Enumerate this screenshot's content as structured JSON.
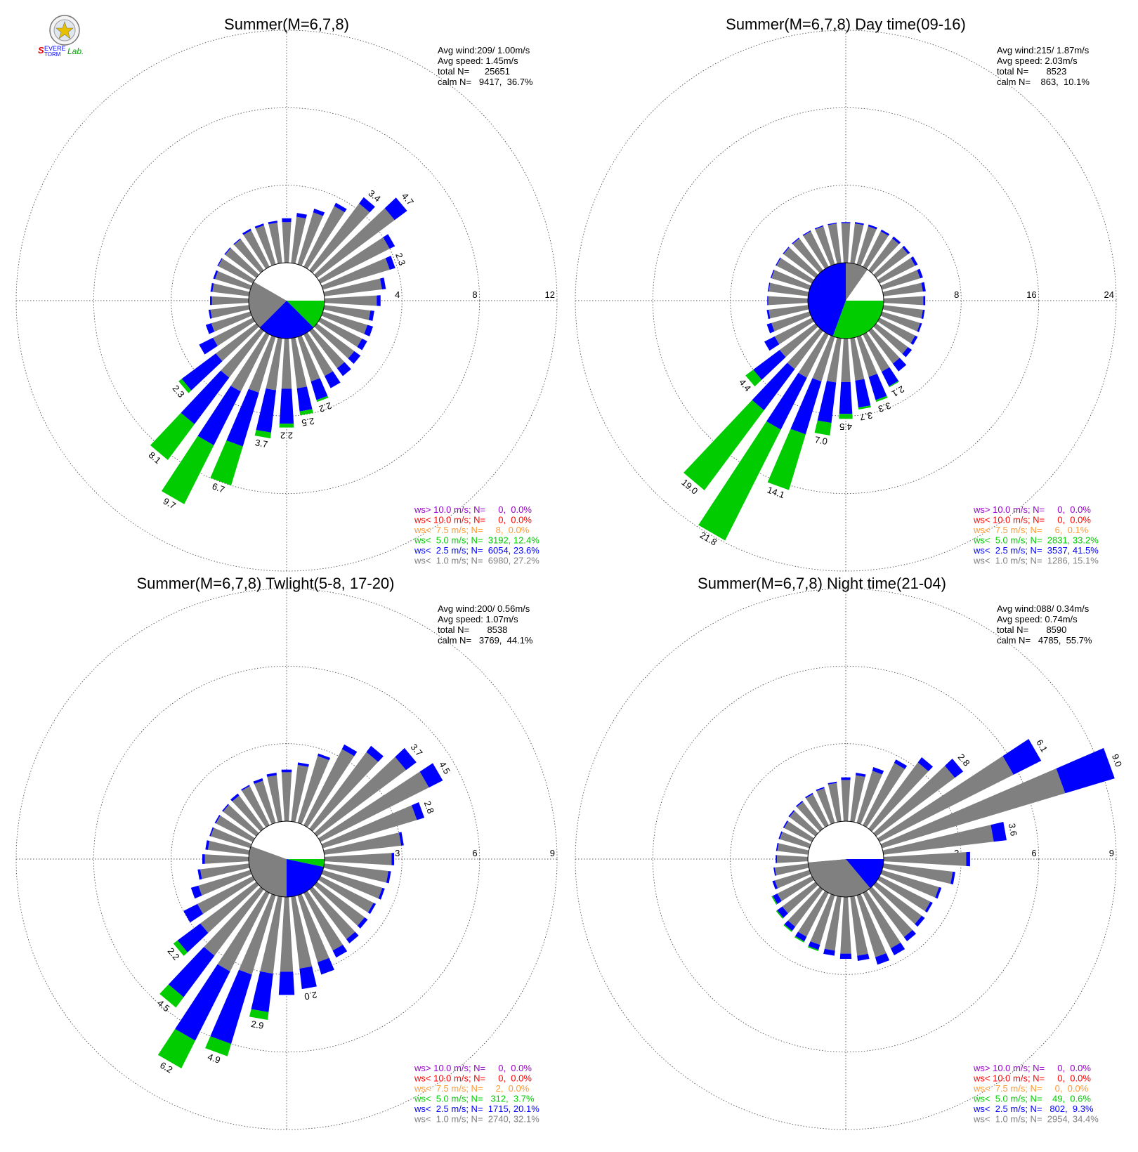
{
  "logo": {
    "name": "severe-storm-lab-logo",
    "text": "SEVERE STORM Lab."
  },
  "colors": {
    "gt10": "#9900cc",
    "lt10": "#ff0000",
    "lt75": "#ff9933",
    "lt5": "#00cc00",
    "lt25": "#0000ff",
    "lt1": "#808080"
  },
  "chart_data": [
    {
      "type": "polar-bar",
      "title": "Summer(M=6,7,8)",
      "stats": [
        "Avg wind:209/ 1.00m/s",
        "Avg speed: 1.45m/s",
        "total N=      25651",
        "calm N=   9417,  36.7%"
      ],
      "rmax": 12,
      "ring_labels": [
        "4",
        "8",
        "12"
      ],
      "calm_sectors": [
        {
          "color": "lt5",
          "start": 90,
          "end": 135
        },
        {
          "color": "lt25",
          "start": 135,
          "end": 225
        },
        {
          "color": "lt1",
          "start": 225,
          "end": 300
        },
        {
          "color": "white",
          "start": 300,
          "end": 450
        }
      ],
      "bars": [
        {
          "dir": 0,
          "lt1": 2.1,
          "lt25": 2.3
        },
        {
          "dir": 10,
          "lt1": 2.4,
          "lt25": 2.6
        },
        {
          "dir": 20,
          "lt1": 2.8,
          "lt25": 3.0
        },
        {
          "dir": 30,
          "lt1": 3.5,
          "lt25": 3.7
        },
        {
          "dir": 40,
          "lt1": 4.3,
          "lt25": 4.7,
          "label": "3.4"
        },
        {
          "dir": 50,
          "lt1": 5.0,
          "lt25": 5.8,
          "label": "4.7"
        },
        {
          "dir": 60,
          "lt1": 4.0,
          "lt25": 4.3
        },
        {
          "dir": 70,
          "lt1": 3.6,
          "lt25": 3.9,
          "label": "2.3"
        },
        {
          "dir": 80,
          "lt1": 3.0,
          "lt25": 3.2
        },
        {
          "dir": 90,
          "lt1": 2.7,
          "lt25": 2.9
        },
        {
          "dir": 100,
          "lt1": 2.4,
          "lt25": 2.6
        },
        {
          "dir": 110,
          "lt1": 2.4,
          "lt25": 2.7
        },
        {
          "dir": 120,
          "lt1": 2.4,
          "lt25": 2.7
        },
        {
          "dir": 130,
          "lt1": 2.4,
          "lt25": 2.8
        },
        {
          "dir": 140,
          "lt1": 2.4,
          "lt25": 2.9
        },
        {
          "dir": 150,
          "lt1": 2.4,
          "lt25": 3.1
        },
        {
          "dir": 160,
          "lt1": 2.4,
          "lt25": 3.4,
          "lt5": 3.5,
          "label": "2.2"
        },
        {
          "dir": 170,
          "lt1": 2.6,
          "lt25": 3.8,
          "lt5": 4.0,
          "label": "2.5"
        },
        {
          "dir": 180,
          "lt1": 2.6,
          "lt25": 4.4,
          "lt5": 4.6,
          "label": "2.2"
        },
        {
          "dir": 190,
          "lt1": 2.7,
          "lt25": 4.9,
          "lt5": 5.2,
          "label": "3.7"
        },
        {
          "dir": 200,
          "lt1": 3.0,
          "lt25": 5.9,
          "lt5": 8.0,
          "label": "6.7"
        },
        {
          "dir": 210,
          "lt1": 3.3,
          "lt25": 6.4,
          "lt5": 9.8,
          "label": "9.7"
        },
        {
          "dir": 220,
          "lt1": 3.0,
          "lt25": 6.0,
          "lt5": 8.3,
          "label": "8.1"
        },
        {
          "dir": 230,
          "lt1": 2.6,
          "lt25": 4.8,
          "lt5": 5.0,
          "label": "2.3"
        },
        {
          "dir": 240,
          "lt1": 2.3,
          "lt25": 3.1
        },
        {
          "dir": 250,
          "lt1": 2.1,
          "lt25": 2.4
        },
        {
          "dir": 260,
          "lt1": 2.0,
          "lt25": 2.1
        },
        {
          "dir": 270,
          "lt1": 1.9,
          "lt25": 2.0
        },
        {
          "dir": 280,
          "lt1": 1.9,
          "lt25": 2.0
        },
        {
          "dir": 290,
          "lt1": 1.9,
          "lt25": 2.0
        },
        {
          "dir": 300,
          "lt1": 2.0,
          "lt25": 2.05
        },
        {
          "dir": 310,
          "lt1": 2.0,
          "lt25": 2.05
        },
        {
          "dir": 320,
          "lt1": 2.0,
          "lt25": 2.05
        },
        {
          "dir": 330,
          "lt1": 2.1,
          "lt25": 2.2
        },
        {
          "dir": 340,
          "lt1": 2.1,
          "lt25": 2.2
        },
        {
          "dir": 350,
          "lt1": 2.1,
          "lt25": 2.2
        }
      ],
      "legend": [
        {
          "color": "gt10",
          "text": "ws> 10.0 m/s; N=     0,  0.0%"
        },
        {
          "color": "lt10",
          "text": "ws< 10.0 m/s; N=     0,  0.0%"
        },
        {
          "color": "lt75",
          "text": "ws<  7.5 m/s; N=     8,  0.0%"
        },
        {
          "color": "lt5",
          "text": "ws<  5.0 m/s; N=  3192, 12.4%"
        },
        {
          "color": "lt25",
          "text": "ws<  2.5 m/s; N=  6054, 23.6%"
        },
        {
          "color": "lt1",
          "text": "ws<  1.0 m/s; N=  6980, 27.2%"
        }
      ]
    },
    {
      "type": "polar-bar",
      "title": "Summer(M=6,7,8) Day time(09-16)",
      "stats": [
        "Avg wind:215/ 1.87m/s",
        "Avg speed: 2.03m/s",
        "total N=       8523",
        "calm N=    863,  10.1%"
      ],
      "rmax": 24,
      "ring_labels": [
        "8",
        "16",
        "24"
      ],
      "calm_sectors": [
        {
          "color": "lt5",
          "start": 90,
          "end": 200
        },
        {
          "color": "lt25",
          "start": 200,
          "end": 360
        },
        {
          "color": "lt1",
          "start": 360,
          "end": 395
        },
        {
          "color": "white",
          "start": 395,
          "end": 450
        }
      ],
      "bars": [
        {
          "dir": 0,
          "lt1": 4.1,
          "lt25": 4.2
        },
        {
          "dir": 10,
          "lt1": 4.1,
          "lt25": 4.25
        },
        {
          "dir": 20,
          "lt1": 4.1,
          "lt25": 4.3
        },
        {
          "dir": 30,
          "lt1": 4.1,
          "lt25": 4.3
        },
        {
          "dir": 40,
          "lt1": 4.1,
          "lt25": 4.35
        },
        {
          "dir": 50,
          "lt1": 4.1,
          "lt25": 4.35
        },
        {
          "dir": 60,
          "lt1": 4.1,
          "lt25": 4.4
        },
        {
          "dir": 70,
          "lt1": 4.1,
          "lt25": 4.4
        },
        {
          "dir": 80,
          "lt1": 4.1,
          "lt25": 4.4
        },
        {
          "dir": 90,
          "lt1": 4.1,
          "lt25": 4.3
        },
        {
          "dir": 100,
          "lt1": 4.1,
          "lt25": 4.3
        },
        {
          "dir": 110,
          "lt1": 4.1,
          "lt25": 4.3
        },
        {
          "dir": 120,
          "lt1": 4.1,
          "lt25": 4.4
        },
        {
          "dir": 130,
          "lt1": 4.1,
          "lt25": 4.6
        },
        {
          "dir": 140,
          "lt1": 4.2,
          "lt25": 5.2
        },
        {
          "dir": 150,
          "lt1": 4.3,
          "lt25": 6.0,
          "lt5": 6.1,
          "label": "2.1"
        },
        {
          "dir": 160,
          "lt1": 4.3,
          "lt25": 6.8,
          "lt5": 7.0,
          "label": "3.3"
        },
        {
          "dir": 170,
          "lt1": 4.4,
          "lt25": 7.2,
          "lt5": 7.4,
          "label": "3.7"
        },
        {
          "dir": 180,
          "lt1": 4.5,
          "lt25": 7.8,
          "lt5": 8.3,
          "label": "4.5"
        },
        {
          "dir": 190,
          "lt1": 4.6,
          "lt25": 8.8,
          "lt5": 10.1,
          "label": "7.0"
        },
        {
          "dir": 200,
          "lt1": 4.8,
          "lt25": 10.5,
          "lt5": 16.5,
          "label": "14.1"
        },
        {
          "dir": 210,
          "lt1": 5.0,
          "lt25": 11.0,
          "lt5": 23.8,
          "label": "21.8"
        },
        {
          "dir": 220,
          "lt1": 4.9,
          "lt25": 10.2,
          "lt5": 20.5,
          "label": "19.0"
        },
        {
          "dir": 230,
          "lt1": 4.6,
          "lt25": 8.0,
          "lt5": 9.0,
          "label": "4.4"
        },
        {
          "dir": 240,
          "lt1": 4.3,
          "lt25": 5.5
        },
        {
          "dir": 250,
          "lt1": 4.1,
          "lt25": 4.6
        },
        {
          "dir": 260,
          "lt1": 4.1,
          "lt25": 4.3
        },
        {
          "dir": 270,
          "lt1": 4.1,
          "lt25": 4.2
        },
        {
          "dir": 280,
          "lt1": 4.1,
          "lt25": 4.2
        },
        {
          "dir": 290,
          "lt1": 4.1,
          "lt25": 4.2
        },
        {
          "dir": 300,
          "lt1": 4.1,
          "lt25": 4.2
        },
        {
          "dir": 310,
          "lt1": 4.1,
          "lt25": 4.2
        },
        {
          "dir": 320,
          "lt1": 4.1,
          "lt25": 4.2
        },
        {
          "dir": 330,
          "lt1": 4.1,
          "lt25": 4.2
        },
        {
          "dir": 340,
          "lt1": 4.1,
          "lt25": 4.2
        },
        {
          "dir": 350,
          "lt1": 4.1,
          "lt25": 4.2
        }
      ],
      "legend": [
        {
          "color": "gt10",
          "text": "ws> 10.0 m/s; N=     0,  0.0%"
        },
        {
          "color": "lt10",
          "text": "ws< 10.0 m/s; N=     0,  0.0%"
        },
        {
          "color": "lt75",
          "text": "ws<  7.5 m/s; N=     6,  0.1%"
        },
        {
          "color": "lt5",
          "text": "ws<  5.0 m/s; N=  2831, 33.2%"
        },
        {
          "color": "lt25",
          "text": "ws<  2.5 m/s; N=  3537, 41.5%"
        },
        {
          "color": "lt1",
          "text": "ws<  1.0 m/s; N=  1286, 15.1%"
        }
      ]
    },
    {
      "type": "polar-bar",
      "title": "Summer(M=6,7,8) Twlight(5-8, 17-20)",
      "stats": [
        "Avg wind:200/ 0.56m/s",
        "Avg speed: 1.07m/s",
        "total N=       8538",
        "calm N=   3769,  44.1%"
      ],
      "rmax": 9,
      "ring_labels": [
        "3",
        "6",
        "9"
      ],
      "calm_sectors": [
        {
          "color": "lt5",
          "start": 90,
          "end": 102
        },
        {
          "color": "lt25",
          "start": 102,
          "end": 180
        },
        {
          "color": "lt1",
          "start": 180,
          "end": 290
        },
        {
          "color": "white",
          "start": 290,
          "end": 450
        }
      ],
      "bars": [
        {
          "dir": 0,
          "lt1": 1.9,
          "lt25": 2.0
        },
        {
          "dir": 10,
          "lt1": 2.2,
          "lt25": 2.3
        },
        {
          "dir": 20,
          "lt1": 2.7,
          "lt25": 2.8
        },
        {
          "dir": 30,
          "lt1": 3.3,
          "lt25": 3.5
        },
        {
          "dir": 40,
          "lt1": 3.7,
          "lt25": 4.0
        },
        {
          "dir": 50,
          "lt1": 4.3,
          "lt25": 4.8,
          "label": "3.7"
        },
        {
          "dir": 60,
          "lt1": 4.7,
          "lt25": 5.3,
          "label": "4.5"
        },
        {
          "dir": 70,
          "lt1": 3.8,
          "lt25": 4.1,
          "label": "2.8"
        },
        {
          "dir": 80,
          "lt1": 3.0,
          "lt25": 3.1
        },
        {
          "dir": 90,
          "lt1": 2.6,
          "lt25": 2.7
        },
        {
          "dir": 100,
          "lt1": 2.5,
          "lt25": 2.6
        },
        {
          "dir": 110,
          "lt1": 2.4,
          "lt25": 2.5
        },
        {
          "dir": 120,
          "lt1": 2.3,
          "lt25": 2.4
        },
        {
          "dir": 130,
          "lt1": 2.3,
          "lt25": 2.45
        },
        {
          "dir": 140,
          "lt1": 2.4,
          "lt25": 2.6
        },
        {
          "dir": 150,
          "lt1": 2.5,
          "lt25": 2.8
        },
        {
          "dir": 160,
          "lt1": 2.7,
          "lt25": 3.2
        },
        {
          "dir": 170,
          "lt1": 2.8,
          "lt25": 3.6,
          "label": "2.0"
        },
        {
          "dir": 180,
          "lt1": 2.9,
          "lt25": 3.8
        },
        {
          "dir": 190,
          "lt1": 3.0,
          "lt25": 4.5,
          "lt5": 4.8,
          "label": "2.9"
        },
        {
          "dir": 200,
          "lt1": 3.2,
          "lt25": 6.0,
          "lt5": 6.5,
          "label": "4.9"
        },
        {
          "dir": 210,
          "lt1": 3.4,
          "lt25": 6.4,
          "lt5": 7.6,
          "label": "6.2"
        },
        {
          "dir": 220,
          "lt1": 3.2,
          "lt25": 5.2,
          "lt5": 5.7,
          "label": "4.5"
        },
        {
          "dir": 230,
          "lt1": 2.7,
          "lt25": 3.8,
          "lt5": 4.0,
          "label": "2.2"
        },
        {
          "dir": 240,
          "lt1": 2.4,
          "lt25": 3.0
        },
        {
          "dir": 250,
          "lt1": 2.1,
          "lt25": 2.4
        },
        {
          "dir": 260,
          "lt1": 1.9,
          "lt25": 2.0
        },
        {
          "dir": 270,
          "lt1": 1.7,
          "lt25": 1.8
        },
        {
          "dir": 280,
          "lt1": 1.6,
          "lt25": 1.7
        },
        {
          "dir": 290,
          "lt1": 1.6,
          "lt25": 1.65
        },
        {
          "dir": 300,
          "lt1": 1.6,
          "lt25": 1.65
        },
        {
          "dir": 310,
          "lt1": 1.6,
          "lt25": 1.65
        },
        {
          "dir": 320,
          "lt1": 1.6,
          "lt25": 1.7
        },
        {
          "dir": 330,
          "lt1": 1.7,
          "lt25": 1.75
        },
        {
          "dir": 340,
          "lt1": 1.7,
          "lt25": 1.8
        },
        {
          "dir": 350,
          "lt1": 1.8,
          "lt25": 1.9
        }
      ],
      "legend": [
        {
          "color": "gt10",
          "text": "ws> 10.0 m/s; N=     0,  0.0%"
        },
        {
          "color": "lt10",
          "text": "ws< 10.0 m/s; N=     0,  0.0%"
        },
        {
          "color": "lt75",
          "text": "ws<  7.5 m/s; N=     2,  0.0%"
        },
        {
          "color": "lt5",
          "text": "ws<  5.0 m/s; N=   312,  3.7%"
        },
        {
          "color": "lt25",
          "text": "ws<  2.5 m/s; N=  1715, 20.1%"
        },
        {
          "color": "lt1",
          "text": "ws<  1.0 m/s; N=  2740, 32.1%"
        }
      ]
    },
    {
      "type": "polar-bar",
      "title": "Summer(M=6,7,8) Night time(21-04)",
      "stats": [
        "Avg wind:088/ 0.34m/s",
        "Avg speed: 0.74m/s",
        "total N=       8590",
        "calm N=   4785,  55.7%"
      ],
      "rmax": 9,
      "ring_labels": [
        "3",
        "6",
        "9"
      ],
      "calm_sectors": [
        {
          "color": "lt25",
          "start": 90,
          "end": 140
        },
        {
          "color": "lt1",
          "start": 140,
          "end": 265
        },
        {
          "color": "white",
          "start": 265,
          "end": 450
        }
      ],
      "bars": [
        {
          "dir": 0,
          "lt1": 1.6,
          "lt25": 1.7
        },
        {
          "dir": 10,
          "lt1": 1.8,
          "lt25": 1.9
        },
        {
          "dir": 20,
          "lt1": 2.1,
          "lt25": 2.25
        },
        {
          "dir": 30,
          "lt1": 2.7,
          "lt25": 2.85
        },
        {
          "dir": 40,
          "lt1": 3.2,
          "lt25": 3.45
        },
        {
          "dir": 50,
          "lt1": 3.8,
          "lt25": 4.2,
          "label": "2.8"
        },
        {
          "dir": 60,
          "lt1": 5.8,
          "lt25": 7.0,
          "label": "6.1"
        },
        {
          "dir": 70,
          "lt1": 7.4,
          "lt25": 9.4,
          "label": "9.0"
        },
        {
          "dir": 80,
          "lt1": 4.3,
          "lt25": 4.8,
          "label": "3.6"
        },
        {
          "dir": 90,
          "lt1": 3.2,
          "lt25": 3.35
        },
        {
          "dir": 100,
          "lt1": 2.7,
          "lt25": 2.8
        },
        {
          "dir": 110,
          "lt1": 2.3,
          "lt25": 2.4
        },
        {
          "dir": 120,
          "lt1": 2.2,
          "lt25": 2.3
        },
        {
          "dir": 130,
          "lt1": 2.2,
          "lt25": 2.35
        },
        {
          "dir": 140,
          "lt1": 2.3,
          "lt25": 2.5
        },
        {
          "dir": 150,
          "lt1": 2.4,
          "lt25": 2.7
        },
        {
          "dir": 160,
          "lt1": 2.5,
          "lt25": 2.8
        },
        {
          "dir": 170,
          "lt1": 2.3,
          "lt25": 2.5
        },
        {
          "dir": 180,
          "lt1": 2.2,
          "lt25": 2.4
        },
        {
          "dir": 190,
          "lt1": 2.1,
          "lt25": 2.3
        },
        {
          "dir": 200,
          "lt1": 2.0,
          "lt25": 2.2,
          "lt5": 2.25
        },
        {
          "dir": 210,
          "lt1": 1.9,
          "lt25": 2.1,
          "lt5": 2.15
        },
        {
          "dir": 220,
          "lt1": 1.8,
          "lt25": 2.0,
          "lt5": 2.05
        },
        {
          "dir": 230,
          "lt1": 1.6,
          "lt25": 1.85,
          "lt5": 1.9
        },
        {
          "dir": 240,
          "lt1": 1.5,
          "lt25": 1.7,
          "lt5": 1.75
        },
        {
          "dir": 250,
          "lt1": 1.4,
          "lt25": 1.5
        },
        {
          "dir": 260,
          "lt1": 1.3,
          "lt25": 1.35
        },
        {
          "dir": 270,
          "lt1": 1.2,
          "lt25": 1.25
        },
        {
          "dir": 280,
          "lt1": 1.2,
          "lt25": 1.25
        },
        {
          "dir": 290,
          "lt1": 1.2,
          "lt25": 1.25
        },
        {
          "dir": 300,
          "lt1": 1.2,
          "lt25": 1.25
        },
        {
          "dir": 310,
          "lt1": 1.25,
          "lt25": 1.3
        },
        {
          "dir": 320,
          "lt1": 1.3,
          "lt25": 1.35
        },
        {
          "dir": 330,
          "lt1": 1.35,
          "lt25": 1.4
        },
        {
          "dir": 340,
          "lt1": 1.4,
          "lt25": 1.45
        },
        {
          "dir": 350,
          "lt1": 1.5,
          "lt25": 1.55
        }
      ],
      "legend": [
        {
          "color": "gt10",
          "text": "ws> 10.0 m/s; N=     0,  0.0%"
        },
        {
          "color": "lt10",
          "text": "ws< 10.0 m/s; N=     0,  0.0%"
        },
        {
          "color": "lt75",
          "text": "ws<  7.5 m/s; N=     0,  0.0%"
        },
        {
          "color": "lt5",
          "text": "ws<  5.0 m/s; N=    49,  0.6%"
        },
        {
          "color": "lt25",
          "text": "ws<  2.5 m/s; N=   802,  9.3%"
        },
        {
          "color": "lt1",
          "text": "ws<  1.0 m/s; N=  2954, 34.4%"
        }
      ]
    }
  ]
}
